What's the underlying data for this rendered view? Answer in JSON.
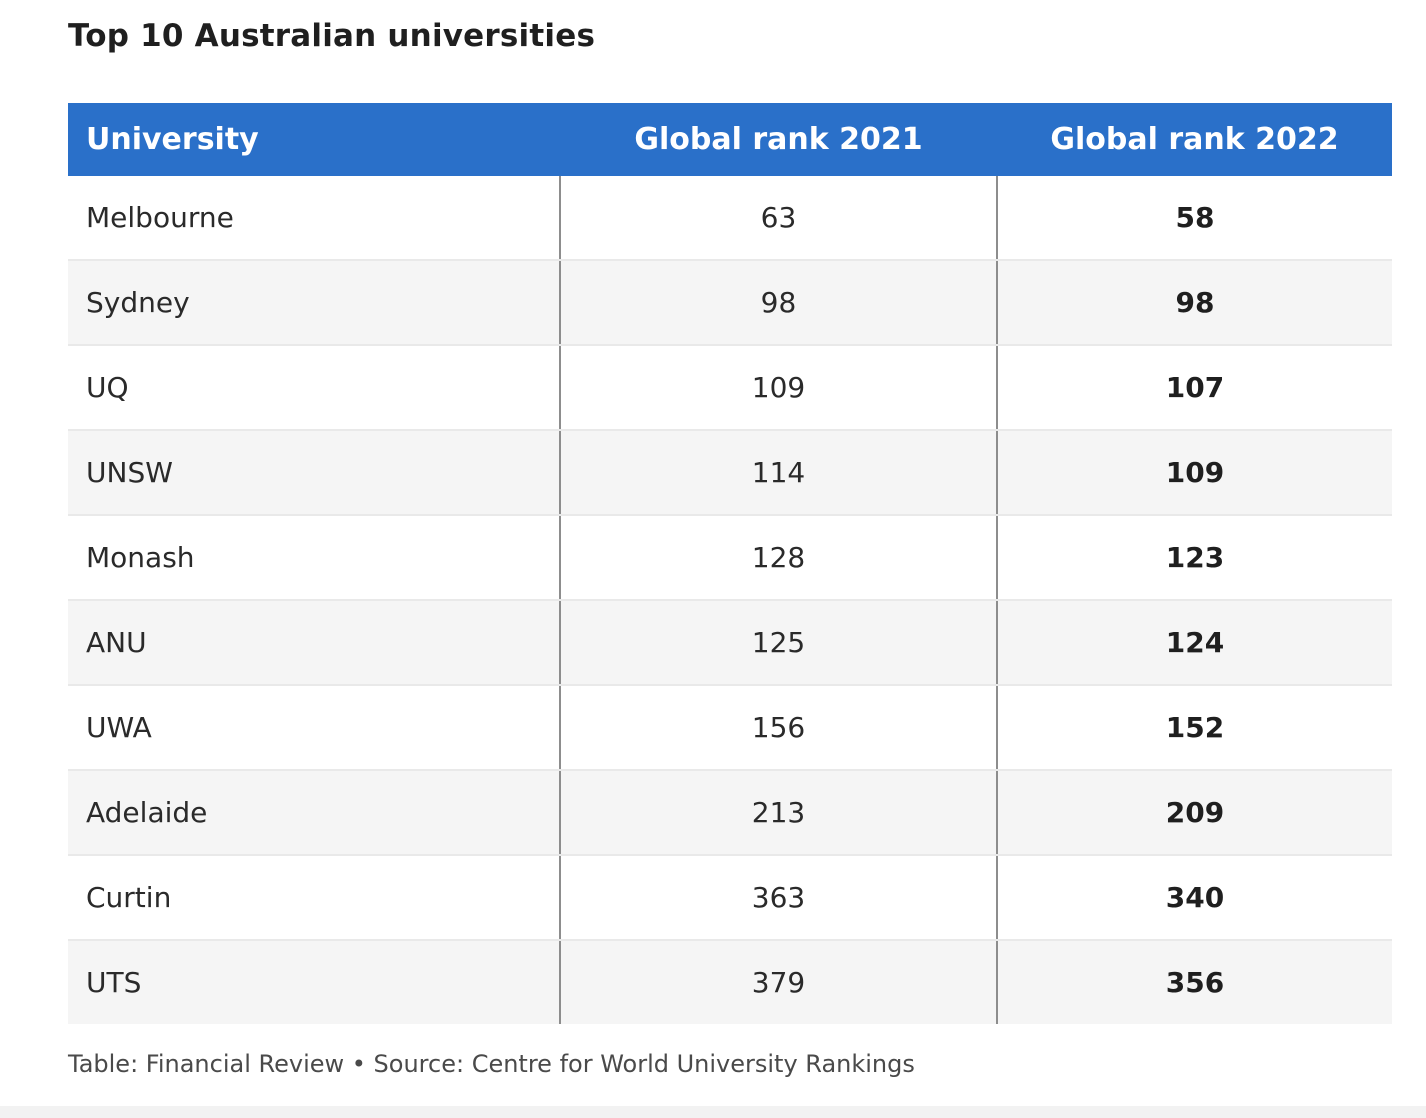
{
  "title": "Top 10 Australian universities",
  "colors": {
    "header_bg": "#2a70c9",
    "header_text": "#ffffff",
    "row_alt": "#f5f5f5",
    "divider": "#8d8d8d"
  },
  "footer": {
    "text": "Table: Financial Review • Source: Centre for World University Rankings"
  },
  "chart_data": {
    "type": "table",
    "title": "Top 10 Australian universities",
    "columns": [
      "University",
      "Global rank 2021",
      "Global rank 2022"
    ],
    "rows": [
      {
        "university": "Melbourne",
        "rank_2021": "63",
        "rank_2022": "58"
      },
      {
        "university": "Sydney",
        "rank_2021": "98",
        "rank_2022": "98"
      },
      {
        "university": "UQ",
        "rank_2021": "109",
        "rank_2022": "107"
      },
      {
        "university": "UNSW",
        "rank_2021": "114",
        "rank_2022": "109"
      },
      {
        "university": "Monash",
        "rank_2021": "128",
        "rank_2022": "123"
      },
      {
        "university": "ANU",
        "rank_2021": "125",
        "rank_2022": "124"
      },
      {
        "university": "UWA",
        "rank_2021": "156",
        "rank_2022": "152"
      },
      {
        "university": "Adelaide",
        "rank_2021": "213",
        "rank_2022": "209"
      },
      {
        "university": "Curtin",
        "rank_2021": "363",
        "rank_2022": "340"
      },
      {
        "university": "UTS",
        "rank_2021": "379",
        "rank_2022": "356"
      }
    ]
  }
}
